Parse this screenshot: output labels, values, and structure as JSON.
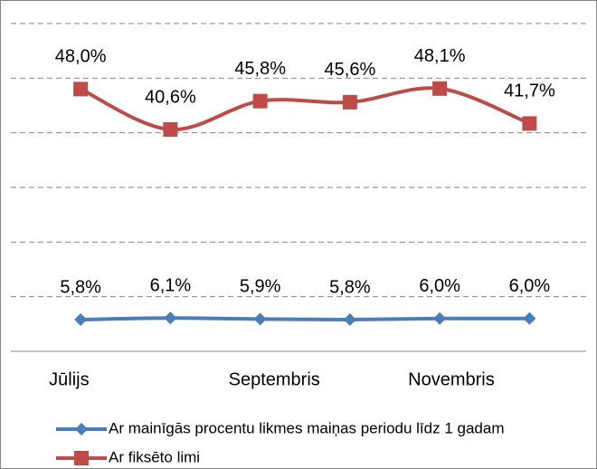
{
  "chart_data": {
    "type": "line",
    "categories": [
      "Jūlijs",
      null,
      "Septembris",
      null,
      "Novembris",
      null
    ],
    "series": [
      {
        "name": "Ar mainīgās procentu likmes  maiņas periodu līdz 1 gadam",
        "color": "#4a7ebb",
        "marker": "diamond",
        "values": [
          5.8,
          6.1,
          5.9,
          5.8,
          6.0,
          6.0
        ],
        "value_labels": [
          "5,8%",
          "6,1%",
          "5,9%",
          "5,8%",
          "6,0%",
          "6,0%"
        ]
      },
      {
        "name": "Ar fiksēto limi",
        "color": "#be4b48",
        "marker": "square",
        "values": [
          48.0,
          40.6,
          45.8,
          45.6,
          48.1,
          41.7
        ],
        "value_labels": [
          "48,0%",
          "40,6%",
          "45,8%",
          "45,6%",
          "48,1%",
          "41,7%"
        ]
      }
    ],
    "ylim": [
      0,
      60
    ],
    "yticks": [
      0,
      10,
      20,
      30,
      40,
      50,
      60
    ],
    "grid": true,
    "smooth": true,
    "legend": "bottom"
  }
}
